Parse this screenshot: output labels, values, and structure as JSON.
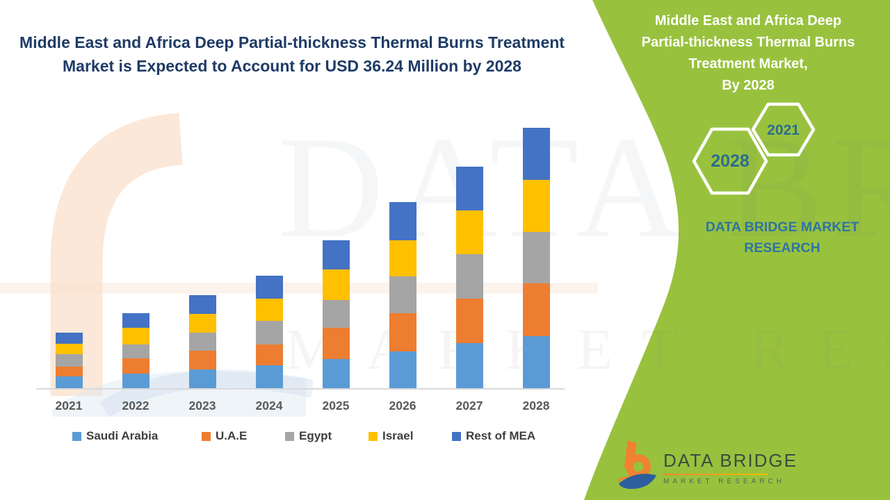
{
  "page": {
    "background": "#FFFFFF"
  },
  "header": {
    "title_line1": "Middle East and Africa Deep Partial-thickness Thermal Burns Treatment",
    "title_line2": "Market is Expected to Account for USD 36.24 Million by 2028",
    "title_color": "#1F3B66"
  },
  "side_panel": {
    "background_color": "#98C23E",
    "title_lines": [
      "Middle East and Africa Deep",
      "Partial-thickness Thermal Burns",
      "Treatment Market,",
      "By 2028"
    ],
    "hexagon_badges": [
      {
        "label": "2021"
      },
      {
        "label": "2028"
      }
    ],
    "hexagon_label_color": "#2C6C8F",
    "brand_line1": "DATA BRIDGE MARKET",
    "brand_line2": "RESEARCH",
    "brand_color": "#2E74A4"
  },
  "footer_logo": {
    "wordmark": "DATA BRIDGE",
    "subtitle": "MARKET RESEARCH"
  },
  "watermark": {
    "line1": "DATA BRIDGE",
    "line2": "MARKET RESEARCH"
  },
  "chart_data": {
    "type": "bar",
    "stacked": true,
    "title": "Middle East and Africa Deep Partial-thickness Thermal Burns Treatment Market",
    "unit": "USD Million",
    "categories": [
      "2021",
      "2022",
      "2023",
      "2024",
      "2025",
      "2026",
      "2027",
      "2028"
    ],
    "series": [
      {
        "name": "Saudi Arabia",
        "color": "#5B9BD5",
        "values": [
          1.61,
          2.03,
          2.64,
          3.19,
          4.09,
          5.12,
          6.28,
          7.25
        ]
      },
      {
        "name": "U.A.E",
        "color": "#ED7D31",
        "values": [
          1.38,
          2.16,
          2.64,
          2.9,
          4.35,
          5.34,
          6.18,
          7.31
        ]
      },
      {
        "name": "Egypt",
        "color": "#A5A5A5",
        "values": [
          1.77,
          1.93,
          2.51,
          3.31,
          3.86,
          5.15,
          6.21,
          7.18
        ]
      },
      {
        "name": "Israel",
        "color": "#FFC000",
        "values": [
          1.45,
          2.29,
          2.64,
          3.06,
          4.28,
          5.02,
          6.12,
          7.25
        ]
      },
      {
        "name": "Rest of MEA",
        "color": "#4472C4",
        "values": [
          1.52,
          2.06,
          2.58,
          3.16,
          4.06,
          5.31,
          6.13,
          7.25
        ]
      }
    ],
    "totals": [
      7.73,
      10.47,
      13.01,
      15.62,
      20.64,
      25.94,
      30.92,
      36.24
    ],
    "highlight_total": {
      "year": "2028",
      "value_label": "USD 36.24 Million"
    },
    "ylim": [
      0,
      38
    ],
    "grid": false,
    "y_axis_visible": false,
    "legend_position": "bottom",
    "x_tick_color": "#595959",
    "legend_text_color": "#3F3F3F",
    "axis_line_color": "#D9D9D9"
  }
}
